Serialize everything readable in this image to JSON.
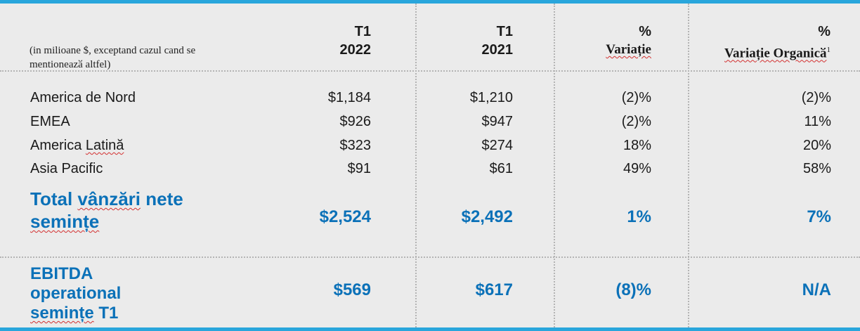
{
  "header": {
    "note": [
      "(in milioane $, exceptand cazul cand se",
      "mentioneazӑ altfel)"
    ],
    "col1": [
      "T1",
      "2022"
    ],
    "col2": [
      "T1",
      "2021"
    ],
    "col3": [
      "%",
      "Variație"
    ],
    "col4_pct": "%",
    "col4_label": "Variație Organicӑ",
    "col4_sup": "1"
  },
  "rows": [
    {
      "label": "America de Nord",
      "v2022": "$1,184",
      "v2021": "$1,210",
      "var": "(2)%",
      "org": "(2)%"
    },
    {
      "label": "EMEA",
      "v2022": "$926",
      "v2021": "$947",
      "var": "(2)%",
      "org": "11%"
    },
    {
      "label_a": "America ",
      "label_b": "Latinӑ",
      "v2022": "$323",
      "v2021": "$274",
      "var": "18%",
      "org": "20%"
    },
    {
      "label": "Asia Pacific",
      "v2022": "$91",
      "v2021": "$61",
      "var": "49%",
      "org": "58%"
    }
  ],
  "total": {
    "label_line1_a": "Total ",
    "label_line1_b": "vânzӑri",
    "label_line1_c": " nete",
    "label_line2": "semințe",
    "v2022": "$2,524",
    "v2021": "$2,492",
    "var": "1%",
    "org": "7%"
  },
  "ebitda": {
    "line1": "EBITDA",
    "line2": "operational",
    "line3_a": "semințe",
    "line3_b": " T1",
    "v2022": "$569",
    "v2021": "$617",
    "var": "(8)%",
    "org": "N/A"
  },
  "colors": {
    "accent": "#29a6dc",
    "highlight_text": "#0b71b8",
    "background": "#ebebeb"
  }
}
